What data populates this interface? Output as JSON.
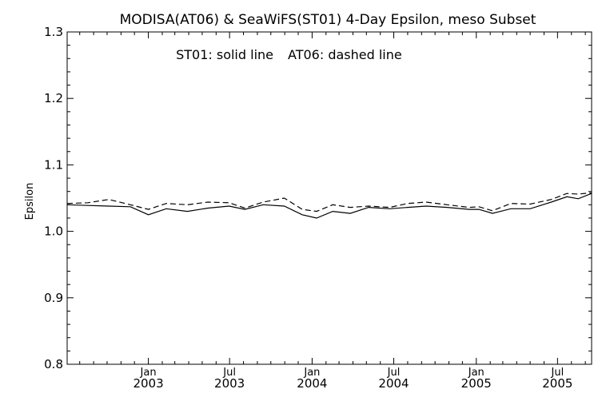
{
  "chart_data": {
    "type": "line",
    "title": "MODISA(AT06) & SeaWiFS(ST01) 4-Day Epsilon, meso Subset",
    "annotations": [
      "ST01: solid line",
      "AT06: dashed line"
    ],
    "ylabel": "Epsilon",
    "xlabel": "",
    "ylim": [
      0.8,
      1.3
    ],
    "xlim": [
      "2002-07-04",
      "2005-09-15"
    ],
    "yticks": [
      "0.8",
      "0.9",
      "1.0",
      "1.1",
      "1.2",
      "1.3"
    ],
    "xticks": [
      {
        "date": "2003-01-01",
        "month": "Jan",
        "year": "2003"
      },
      {
        "date": "2003-07-01",
        "month": "Jul",
        "year": "2003"
      },
      {
        "date": "2004-01-01",
        "month": "Jan",
        "year": "2004"
      },
      {
        "date": "2004-07-01",
        "month": "Jul",
        "year": "2004"
      },
      {
        "date": "2005-01-01",
        "month": "Jan",
        "year": "2005"
      },
      {
        "date": "2005-07-01",
        "month": "Jul",
        "year": "2005"
      }
    ],
    "x": [
      "2002-07-04",
      "2002-08-19",
      "2002-10-05",
      "2002-11-22",
      "2003-01-01",
      "2003-02-10",
      "2003-03-29",
      "2003-05-14",
      "2003-06-30",
      "2003-08-04",
      "2003-09-14",
      "2003-10-31",
      "2003-12-10",
      "2004-01-11",
      "2004-02-16",
      "2004-03-26",
      "2004-05-06",
      "2004-06-22",
      "2004-08-01",
      "2004-09-11",
      "2004-10-28",
      "2004-12-16",
      "2005-01-07",
      "2005-02-06",
      "2005-03-19",
      "2005-05-01",
      "2005-06-17",
      "2005-07-22",
      "2005-08-16",
      "2005-09-15"
    ],
    "series": [
      {
        "name": "ST01",
        "style": "solid",
        "values": [
          1.04,
          1.039,
          1.038,
          1.037,
          1.025,
          1.034,
          1.03,
          1.035,
          1.038,
          1.033,
          1.04,
          1.038,
          1.025,
          1.02,
          1.03,
          1.027,
          1.036,
          1.034,
          1.036,
          1.038,
          1.036,
          1.033,
          1.033,
          1.027,
          1.034,
          1.034,
          1.044,
          1.052,
          1.049,
          1.057
        ]
      },
      {
        "name": "AT06",
        "style": "dashed",
        "values": [
          1.042,
          1.043,
          1.048,
          1.04,
          1.033,
          1.042,
          1.04,
          1.044,
          1.043,
          1.035,
          1.044,
          1.05,
          1.033,
          1.03,
          1.04,
          1.036,
          1.038,
          1.036,
          1.042,
          1.044,
          1.04,
          1.036,
          1.037,
          1.031,
          1.042,
          1.041,
          1.048,
          1.057,
          1.056,
          1.058
        ]
      }
    ],
    "grid": false,
    "legend": "none"
  }
}
